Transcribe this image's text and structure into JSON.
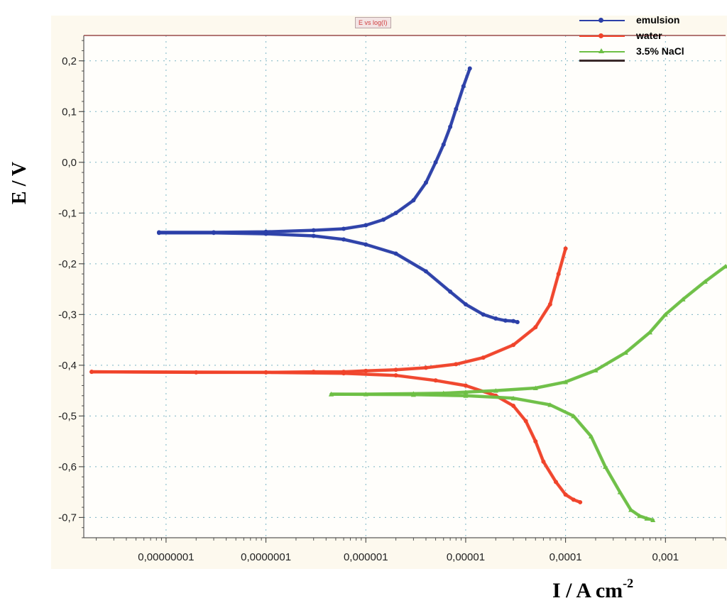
{
  "colors": {
    "emulsion": "#2b3fa8",
    "water": "#f0432a",
    "nacl": "#6dbf45",
    "grid": "#7ab3c4",
    "frame": "#9a4a4a"
  },
  "chart_data": {
    "type": "line",
    "title": "E vs log(I)",
    "xlabel": "I / A cm",
    "xlabel_exponent": "-2",
    "ylabel": "E / V",
    "x_scale": "log",
    "xlim": [
      1.5e-09,
      0.004
    ],
    "ylim": [
      -0.74,
      0.25
    ],
    "grid": true,
    "legend_position": "top-right",
    "x_ticks": [
      {
        "value": 1e-08,
        "label": "0,00000001"
      },
      {
        "value": 1e-07,
        "label": "0,0000001"
      },
      {
        "value": 1e-06,
        "label": "0,000001"
      },
      {
        "value": 1e-05,
        "label": "0,00001"
      },
      {
        "value": 0.0001,
        "label": "0,0001"
      },
      {
        "value": 0.001,
        "label": "0,001"
      }
    ],
    "y_ticks": [
      {
        "value": 0.2,
        "label": "0,2"
      },
      {
        "value": 0.1,
        "label": "0,1"
      },
      {
        "value": 0.0,
        "label": "0,0"
      },
      {
        "value": -0.1,
        "label": "-0,1"
      },
      {
        "value": -0.2,
        "label": "-0,2"
      },
      {
        "value": -0.3,
        "label": "-0,3"
      },
      {
        "value": -0.4,
        "label": "-0,4"
      },
      {
        "value": -0.5,
        "label": "-0,5"
      },
      {
        "value": -0.6,
        "label": "-0,6"
      },
      {
        "value": -0.7,
        "label": "-0,7"
      }
    ],
    "series": [
      {
        "name": "emulsion",
        "marker": "circle",
        "anodic": [
          [
            8.5e-09,
            -0.138
          ],
          [
            3e-08,
            -0.138
          ],
          [
            1e-07,
            -0.137
          ],
          [
            3e-07,
            -0.134
          ],
          [
            6e-07,
            -0.131
          ],
          [
            1e-06,
            -0.124
          ],
          [
            1.5e-06,
            -0.113
          ],
          [
            2e-06,
            -0.1
          ],
          [
            3e-06,
            -0.075
          ],
          [
            4e-06,
            -0.04
          ],
          [
            5e-06,
            0.0
          ],
          [
            6e-06,
            0.035
          ],
          [
            7e-06,
            0.07
          ],
          [
            8e-06,
            0.105
          ],
          [
            9.5e-06,
            0.15
          ],
          [
            1.1e-05,
            0.185
          ]
        ],
        "cathodic": [
          [
            8.5e-09,
            -0.139
          ],
          [
            3e-08,
            -0.139
          ],
          [
            1e-07,
            -0.141
          ],
          [
            3e-07,
            -0.145
          ],
          [
            6e-07,
            -0.152
          ],
          [
            1e-06,
            -0.162
          ],
          [
            2e-06,
            -0.18
          ],
          [
            4e-06,
            -0.215
          ],
          [
            7e-06,
            -0.255
          ],
          [
            1e-05,
            -0.28
          ],
          [
            1.5e-05,
            -0.3
          ],
          [
            2e-05,
            -0.308
          ],
          [
            2.5e-05,
            -0.312
          ],
          [
            3e-05,
            -0.313
          ],
          [
            3.3e-05,
            -0.315
          ]
        ]
      },
      {
        "name": "water",
        "marker": "circle",
        "anodic": [
          [
            1.8e-09,
            -0.413
          ],
          [
            2e-08,
            -0.414
          ],
          [
            1e-07,
            -0.414
          ],
          [
            3e-07,
            -0.413
          ],
          [
            6e-07,
            -0.413
          ],
          [
            1e-06,
            -0.411
          ],
          [
            2e-06,
            -0.409
          ],
          [
            4e-06,
            -0.405
          ],
          [
            8e-06,
            -0.398
          ],
          [
            1.5e-05,
            -0.385
          ],
          [
            3e-05,
            -0.36
          ],
          [
            5e-05,
            -0.325
          ],
          [
            7e-05,
            -0.28
          ],
          [
            8.5e-05,
            -0.22
          ],
          [
            0.0001,
            -0.17
          ]
        ],
        "cathodic": [
          [
            1.8e-09,
            -0.413
          ],
          [
            1e-07,
            -0.414
          ],
          [
            6e-07,
            -0.416
          ],
          [
            2e-06,
            -0.42
          ],
          [
            5e-06,
            -0.43
          ],
          [
            1e-05,
            -0.44
          ],
          [
            2e-05,
            -0.46
          ],
          [
            3e-05,
            -0.48
          ],
          [
            4e-05,
            -0.51
          ],
          [
            5e-05,
            -0.55
          ],
          [
            6e-05,
            -0.59
          ],
          [
            8e-05,
            -0.63
          ],
          [
            0.0001,
            -0.655
          ],
          [
            0.00012,
            -0.665
          ],
          [
            0.00014,
            -0.67
          ]
        ]
      },
      {
        "name": "3.5% NaCl",
        "marker": "triangle",
        "anodic": [
          [
            4.5e-07,
            -0.457
          ],
          [
            1e-06,
            -0.457
          ],
          [
            3e-06,
            -0.456
          ],
          [
            6e-06,
            -0.455
          ],
          [
            1e-05,
            -0.453
          ],
          [
            2e-05,
            -0.45
          ],
          [
            5e-05,
            -0.445
          ],
          [
            0.0001,
            -0.433
          ],
          [
            0.0002,
            -0.41
          ],
          [
            0.0004,
            -0.375
          ],
          [
            0.0007,
            -0.335
          ],
          [
            0.001,
            -0.3
          ],
          [
            0.0015,
            -0.27
          ],
          [
            0.0025,
            -0.235
          ],
          [
            0.004,
            -0.205
          ]
        ],
        "cathodic": [
          [
            4.5e-07,
            -0.457
          ],
          [
            3e-06,
            -0.458
          ],
          [
            1e-05,
            -0.46
          ],
          [
            3e-05,
            -0.465
          ],
          [
            7e-05,
            -0.478
          ],
          [
            0.00012,
            -0.5
          ],
          [
            0.00018,
            -0.54
          ],
          [
            0.00025,
            -0.6
          ],
          [
            0.00035,
            -0.65
          ],
          [
            0.00045,
            -0.685
          ],
          [
            0.00055,
            -0.697
          ],
          [
            0.00065,
            -0.702
          ],
          [
            0.00075,
            -0.705
          ]
        ]
      }
    ]
  }
}
